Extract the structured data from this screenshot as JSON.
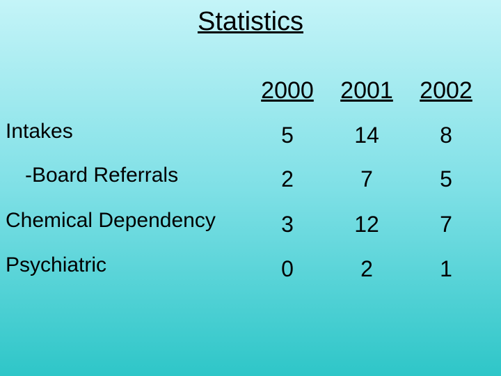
{
  "title": "Statistics",
  "table": {
    "header": [
      "2000",
      "2001",
      "2002"
    ],
    "rows": [
      {
        "label": "Intakes",
        "values": [
          5,
          14,
          8
        ]
      },
      {
        "label": "-Board Referrals",
        "values": [
          2,
          7,
          5
        ]
      },
      {
        "label": "Chemical Dependency",
        "values": [
          3,
          12,
          7
        ]
      },
      {
        "label": "Psychiatric",
        "values": [
          0,
          2,
          1
        ]
      }
    ]
  }
}
